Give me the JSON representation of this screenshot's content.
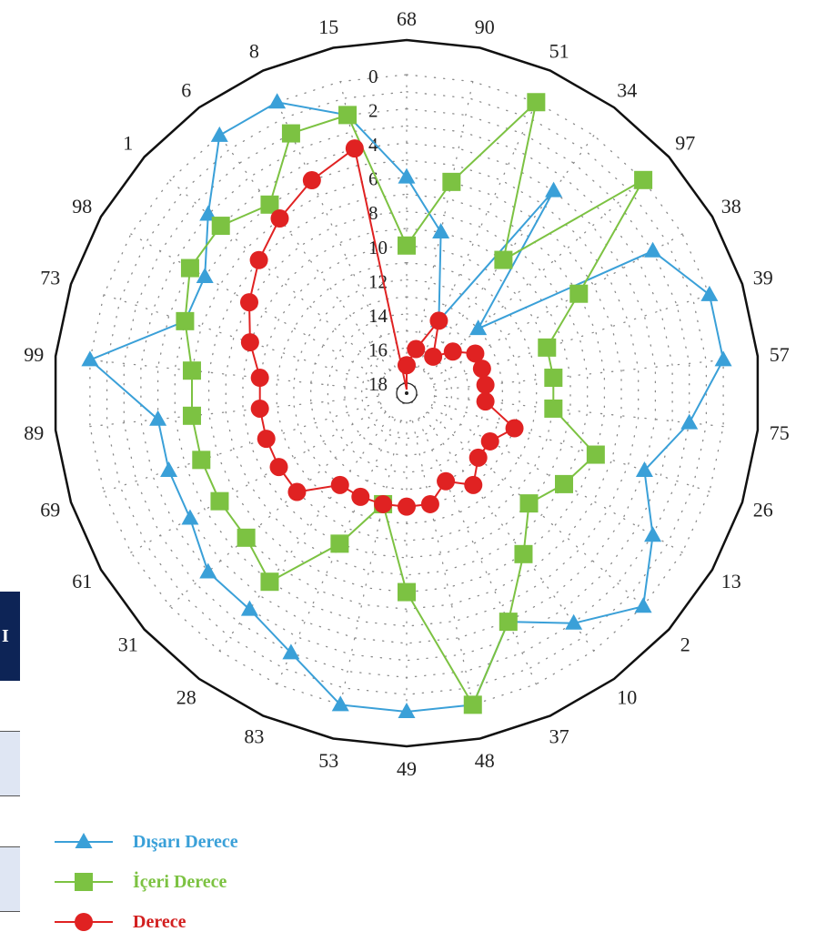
{
  "chart_data": {
    "type": "radar",
    "title": "",
    "categories": [
      "68",
      "90",
      "51",
      "34",
      "97",
      "38",
      "39",
      "57",
      "75",
      "26",
      "13",
      "2",
      "10",
      "37",
      "48",
      "49",
      "53",
      "83",
      "28",
      "31",
      "61",
      "69",
      "89",
      "99",
      "73",
      "98",
      "1",
      "6",
      "8",
      "15"
    ],
    "radial_tick_labels": [
      "0",
      "2",
      "4",
      "6",
      "8",
      "10",
      "12",
      "14",
      "16",
      "18"
    ],
    "radial_range": [
      0,
      18
    ],
    "radial_direction": "outer-is-0",
    "series": [
      {
        "name": "Dışarı Derece",
        "color": "#3aa0d8",
        "marker": "triangle",
        "values": [
          6,
          9,
          14,
          4,
          13,
          2,
          0,
          0,
          2,
          4,
          2,
          0,
          2,
          4,
          0,
          0,
          0,
          2,
          3,
          3,
          4,
          4,
          4,
          0,
          5,
          5,
          3,
          0,
          0,
          2
        ]
      },
      {
        "name": "İçeri Derece",
        "color": "#7cc242",
        "marker": "square",
        "values": [
          10,
          6,
          0,
          9,
          0,
          7,
          10,
          10,
          10,
          7,
          8,
          9,
          7,
          4,
          0,
          7,
          12,
          9,
          5,
          6,
          6,
          6,
          6,
          6,
          5,
          4,
          4,
          5,
          2,
          2
        ]
      },
      {
        "name": "Derece",
        "color": "#e02222",
        "marker": "circle",
        "values": [
          17,
          16,
          14,
          16,
          15,
          14,
          14,
          14,
          14,
          12,
          13,
          13,
          12,
          13,
          12,
          12,
          12,
          12,
          12,
          10,
          10,
          10,
          10,
          10,
          9,
          8,
          7,
          6,
          5,
          4
        ]
      }
    ]
  },
  "legend": [
    {
      "label": "Dışarı Derece",
      "color": "#3aa0d8",
      "marker": "triangle"
    },
    {
      "label": "İçeri Derece",
      "color": "#7cc242",
      "marker": "square"
    },
    {
      "label": "Derece",
      "color": "#e02222",
      "marker": "circle"
    }
  ],
  "side_fragment": {
    "text": "I"
  }
}
